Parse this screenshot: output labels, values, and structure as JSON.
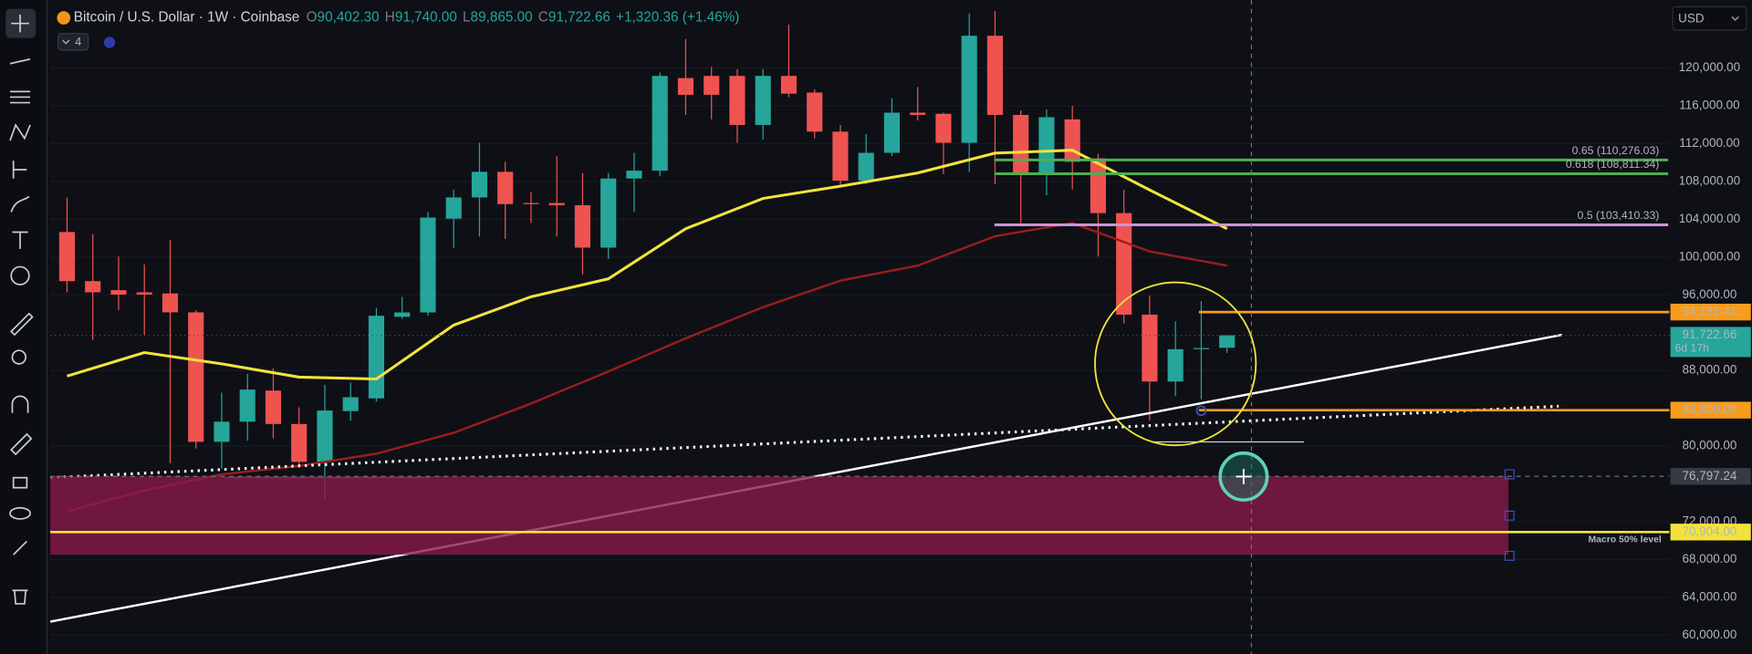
{
  "header": {
    "symbol": "Bitcoin / U.S. Dollar · 1W · Coinbase",
    "ohlc": [
      {
        "key": "O",
        "value": "90,402.30"
      },
      {
        "key": "H",
        "value": "91,740.00"
      },
      {
        "key": "L",
        "value": "89,865.00"
      },
      {
        "key": "C",
        "value": "91,722.66"
      }
    ],
    "change": "+1,320.36 (+1.46%)",
    "indicators": "4",
    "currency": "USD"
  },
  "chart_data": {
    "type": "candlestick",
    "open": [
      102650,
      97450,
      96500,
      96270,
      96150,
      94150,
      80450,
      82580,
      85870,
      82340,
      78330,
      83700,
      85050,
      93680,
      94140,
      104060,
      106310,
      109020,
      105720,
      105720,
      105480,
      101000,
      108310,
      109140,
      118940,
      119170,
      119170,
      113980,
      119170,
      117410,
      113270,
      108080,
      111030,
      115280,
      115160,
      112090,
      123420,
      115040,
      108780,
      114570,
      110440,
      104650,
      93910,
      86830,
      90250,
      90402.3
    ],
    "high": [
      106300,
      102410,
      100050,
      99220,
      101820,
      94380,
      85650,
      87650,
      88240,
      84110,
      86470,
      86710,
      94620,
      95800,
      104770,
      107130,
      112090,
      110080,
      106900,
      110670,
      108900,
      108900,
      111030,
      119530,
      123070,
      120120,
      119880,
      119880,
      124600,
      117760,
      113980,
      113030,
      116810,
      117990,
      115280,
      125780,
      126020,
      115510,
      115620,
      115990,
      110910,
      107130,
      95920,
      93200,
      95330,
      91740
    ],
    "low": [
      96270,
      91200,
      94380,
      91780,
      78200,
      79740,
      77620,
      80570,
      80830,
      77850,
      74310,
      82700,
      84700,
      93440,
      93790,
      100990,
      102170,
      101940,
      103590,
      102170,
      98160,
      99810,
      104770,
      108550,
      115040,
      114570,
      112090,
      112440,
      116930,
      112560,
      107600,
      107720,
      110670,
      114450,
      108780,
      109020,
      107720,
      103590,
      106540,
      107130,
      100050,
      92970,
      82690,
      85290,
      84940,
      89865
    ],
    "close": [
      97450,
      96270,
      96030,
      96030,
      94150,
      80450,
      82580,
      85980,
      82340,
      78330,
      83760,
      85170,
      93790,
      94140,
      104180,
      106310,
      109020,
      105600,
      105600,
      105480,
      101000,
      108310,
      109140,
      119170,
      117170,
      117170,
      113980,
      119170,
      117290,
      113270,
      108080,
      111030,
      115280,
      115040,
      112090,
      123420,
      115040,
      108780,
      114800,
      110080,
      104650,
      93910,
      86830,
      90250,
      90370,
      91722.66
    ],
    "up_color": "#26a69a",
    "down_color": "#ef5350",
    "moving_averages": [
      {
        "color": "#f2e33c",
        "x": [
          0,
          3,
          6,
          9,
          12,
          15,
          18,
          21,
          24,
          27,
          30,
          33,
          36,
          39,
          42,
          45
        ],
        "values": [
          87400,
          89900,
          88700,
          87300,
          87100,
          92800,
          95800,
          97700,
          103000,
          106200,
          107500,
          108900,
          111000,
          111300,
          107100,
          103000
        ]
      },
      {
        "color": "#9b1c1c",
        "x": [
          0,
          3,
          6,
          9,
          12,
          15,
          18,
          21,
          24,
          27,
          30,
          33,
          36,
          39,
          42,
          45
        ],
        "values": [
          73100,
          75300,
          77000,
          77900,
          79200,
          81400,
          84500,
          87900,
          91400,
          94700,
          97500,
          99100,
          102200,
          103600,
          100600,
          99100
        ]
      }
    ],
    "fib_levels": [
      {
        "label": "0.65 (110,276.03)",
        "value": 110276.03,
        "color": "#4caf50"
      },
      {
        "label": "0.618 (108,811.34)",
        "value": 108811.34,
        "color": "#4caf50"
      },
      {
        "label": "0.5 (103,410.33)",
        "value": 103410.33,
        "color": "#ce93d8"
      }
    ],
    "price_lines": [
      {
        "value": 94181.41,
        "label": "94,181.41",
        "color": "#f89c1c"
      },
      {
        "value": 83800,
        "label": "83,800.00",
        "color": "#f89c1c"
      },
      {
        "value": 70904,
        "label": "70,904.00",
        "color": "#f2e33c",
        "note": "Macro 50% level"
      }
    ],
    "last_price": {
      "value": 91722.66,
      "label": "91,722.66",
      "countdown": "6d 17h",
      "color": "#26a69a"
    },
    "crosshair": {
      "value": 76797.24,
      "label": "76,797.24"
    },
    "zone": [
      68500,
      76800
    ],
    "ylim": [
      58000,
      127200
    ],
    "yticks": [
      {
        "value": 60000,
        "label": "60,000.00"
      },
      {
        "value": 64000,
        "label": "64,000.00"
      },
      {
        "value": 68000,
        "label": "68,000.00"
      },
      {
        "value": 72000,
        "label": "72,000.00"
      },
      {
        "value": 80000,
        "label": "80,000.00"
      },
      {
        "value": 88000,
        "label": "88,000.00"
      },
      {
        "value": 96000,
        "label": "96,000.00"
      },
      {
        "value": 100000,
        "label": "100,000.00"
      },
      {
        "value": 104000,
        "label": "104,000.00"
      },
      {
        "value": 108000,
        "label": "108,000.00"
      },
      {
        "value": 112000,
        "label": "112,000.00"
      },
      {
        "value": 116000,
        "label": "116,000.00"
      },
      {
        "value": 120000,
        "label": "120,000.00"
      }
    ],
    "grid": true
  }
}
